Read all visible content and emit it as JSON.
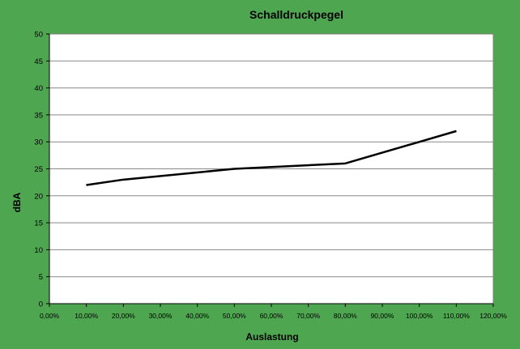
{
  "chart_data": {
    "type": "line",
    "title": "Schalldruckpegel",
    "xlabel": "Auslastung",
    "ylabel": "dBA",
    "x": [
      0.1,
      0.2,
      0.5,
      0.8,
      1.1
    ],
    "y": [
      22,
      23,
      25,
      26,
      32
    ],
    "xlim": [
      0,
      1.2
    ],
    "ylim": [
      0,
      50
    ],
    "x_ticks": [
      "0,00%",
      "10,00%",
      "20,00%",
      "30,00%",
      "40,00%",
      "50,00%",
      "60,00%",
      "70,00%",
      "80,00%",
      "90,00%",
      "100,00%",
      "110,00%",
      "120,00%"
    ],
    "y_ticks": [
      "0",
      "5",
      "10",
      "15",
      "20",
      "25",
      "30",
      "35",
      "40",
      "45",
      "50"
    ],
    "grid": true,
    "legend": "none",
    "colors": {
      "background": "#4fa650",
      "plot_area": "#ffffff",
      "line": "#000000",
      "grid": "#888888"
    }
  }
}
